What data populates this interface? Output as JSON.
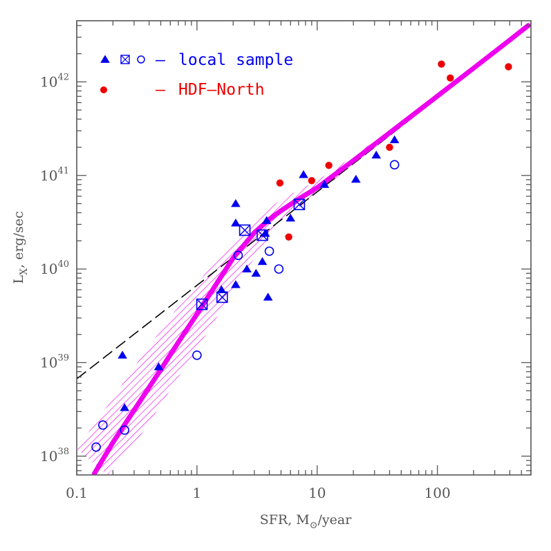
{
  "chart_data": {
    "type": "scatter",
    "title": "",
    "xlabel": {
      "main": "SFR, M",
      "sub": "⊙",
      "tail": "/year"
    },
    "ylabel": {
      "main": "L",
      "sub": "X",
      "tail": ", erg/sec"
    },
    "x_scale": "log",
    "y_scale": "log",
    "xlim": [
      0.1,
      600
    ],
    "ylim": [
      6.3e+37,
      4.5e+42
    ],
    "x_ticks": [
      {
        "value": 0.1,
        "label": "0.1"
      },
      {
        "value": 1,
        "label": "1"
      },
      {
        "value": 10,
        "label": "10"
      },
      {
        "value": 100,
        "label": "100"
      }
    ],
    "y_ticks": [
      {
        "value": 1e+38,
        "base": "10",
        "exp": "38"
      },
      {
        "value": 1e+39,
        "base": "10",
        "exp": "39"
      },
      {
        "value": 1e+40,
        "base": "10",
        "exp": "40"
      },
      {
        "value": 1e+41,
        "base": "10",
        "exp": "41"
      },
      {
        "value": 1e+42,
        "base": "10",
        "exp": "42"
      }
    ],
    "legend": {
      "placement": "top-left",
      "entries": [
        {
          "symbols": [
            "triangle",
            "boxed-x",
            "open-circle"
          ],
          "dash": "–",
          "label": "local sample",
          "color": "#0000ee"
        },
        {
          "symbols": [
            "filled-circle"
          ],
          "dash": "–",
          "label": "HDF–North",
          "color": "#ee0000"
        }
      ]
    },
    "series": [
      {
        "label": "local sample (triangles)",
        "marker": "triangle",
        "color": "#0000ee",
        "points": [
          [
            0.24,
            1.2e+39
          ],
          [
            0.25,
            3.3e+38
          ],
          [
            0.48,
            9e+38
          ],
          [
            1.6,
            6e+39
          ],
          [
            2.1,
            6.8e+39
          ],
          [
            2.1,
            5e+40
          ],
          [
            2.1,
            3.1e+40
          ],
          [
            2.6,
            1e+40
          ],
          [
            3.1,
            9e+39
          ],
          [
            3.5,
            1.2e+40
          ],
          [
            3.7,
            2.4e+40
          ],
          [
            3.8,
            3.3e+40
          ],
          [
            3.9,
            5e+39
          ],
          [
            6.0,
            3.5e+40
          ],
          [
            7.7,
            1.02e+41
          ],
          [
            11.5,
            8e+40
          ],
          [
            21,
            9.1e+40
          ],
          [
            31,
            1.65e+41
          ],
          [
            44,
            2.4e+41
          ]
        ]
      },
      {
        "label": "local sample (boxed crosses)",
        "marker": "boxed-x",
        "color": "#0000ee",
        "points": [
          [
            1.1,
            4.2e+39
          ],
          [
            1.62,
            5e+39
          ],
          [
            2.5,
            2.6e+40
          ],
          [
            3.5,
            2.3e+40
          ],
          [
            7.1,
            4.9e+40
          ]
        ]
      },
      {
        "label": "local sample (open circles)",
        "marker": "open-circle",
        "color": "#0000ee",
        "points": [
          [
            0.145,
            1.25e+38
          ],
          [
            0.165,
            2.15e+38
          ],
          [
            0.25,
            1.9e+38
          ],
          [
            1.0,
            1.2e+39
          ],
          [
            2.2,
            1.4e+40
          ],
          [
            4.0,
            1.55e+40
          ],
          [
            4.8,
            1e+40
          ],
          [
            44,
            1.3e+41
          ]
        ]
      },
      {
        "label": "HDF-North",
        "marker": "filled-circle",
        "color": "#ee0000",
        "points": [
          [
            4.9,
            8.3e+40
          ],
          [
            5.8,
            2.2e+40
          ],
          [
            9.0,
            8.8e+40
          ],
          [
            12.5,
            1.28e+41
          ],
          [
            40,
            2e+41
          ],
          [
            108,
            1.55e+42
          ],
          [
            128,
            1.1e+42
          ],
          [
            390,
            1.45e+42
          ]
        ]
      }
    ],
    "lines": [
      {
        "label": "dashed linear relation",
        "style": "dashed",
        "color": "#000000",
        "points": [
          [
            0.1,
            6.7e+38
          ],
          [
            600,
            4e+42
          ]
        ]
      },
      {
        "label": "model curve",
        "style": "solid-thick",
        "color": "#ee00ee",
        "points": [
          [
            0.14,
            6.5e+37
          ],
          [
            0.2,
            1.4e+38
          ],
          [
            0.3,
            3.1e+38
          ],
          [
            0.5,
            8.4e+38
          ],
          [
            0.7,
            1.65e+39
          ],
          [
            1.0,
            3.3e+39
          ],
          [
            1.5,
            7.4e+39
          ],
          [
            2.0,
            1.31e+40
          ],
          [
            3.0,
            2.45e+40
          ],
          [
            4.0,
            3.4e+40
          ],
          [
            5.0,
            4.2e+40
          ],
          [
            7.0,
            5.6e+40
          ],
          [
            10,
            7.4e+40
          ],
          [
            20,
            1.44e+41
          ],
          [
            50,
            3.55e+41
          ],
          [
            100,
            7.05e+41
          ],
          [
            200,
            1.4e+42
          ],
          [
            400,
            2.8e+42
          ],
          [
            570,
            4e+42
          ]
        ]
      },
      {
        "label": "uncertainty band",
        "style": "hatched",
        "color": "#ee00ee",
        "lower": [
          [
            0.18,
            6.3e+37
          ],
          [
            0.3,
            1.3e+38
          ],
          [
            0.5,
            3.5e+38
          ],
          [
            0.7,
            7e+38
          ],
          [
            1.0,
            1.4e+39
          ],
          [
            1.5,
            3.2e+39
          ],
          [
            2.0,
            6e+39
          ],
          [
            3.0,
            1.3e+40
          ],
          [
            4.0,
            2.2e+40
          ],
          [
            5.0,
            3e+40
          ],
          [
            7.0,
            4.5e+40
          ],
          [
            10,
            6.5e+40
          ],
          [
            20,
            1.3e+41
          ],
          [
            50,
            3.3e+41
          ],
          [
            100,
            6.8e+41
          ],
          [
            200,
            1.35e+42
          ],
          [
            400,
            2.75e+42
          ],
          [
            570,
            3.9e+42
          ]
        ],
        "upper": [
          [
            0.1,
            1.2e+38
          ],
          [
            0.2,
            4.2e+38
          ],
          [
            0.3,
            9e+38
          ],
          [
            0.5,
            2.2e+39
          ],
          [
            0.7,
            4e+39
          ],
          [
            1.0,
            7e+39
          ],
          [
            1.5,
            1.3e+40
          ],
          [
            2.0,
            2e+40
          ],
          [
            3.0,
            3.3e+40
          ],
          [
            4.0,
            4.5e+40
          ],
          [
            5.0,
            5.5e+40
          ],
          [
            7.0,
            7e+40
          ],
          [
            10,
            8.8e+40
          ],
          [
            20,
            1.6e+41
          ],
          [
            50,
            3.8e+41
          ],
          [
            100,
            7.3e+41
          ],
          [
            200,
            1.45e+42
          ],
          [
            400,
            2.85e+42
          ],
          [
            570,
            4.1e+42
          ]
        ]
      }
    ]
  }
}
